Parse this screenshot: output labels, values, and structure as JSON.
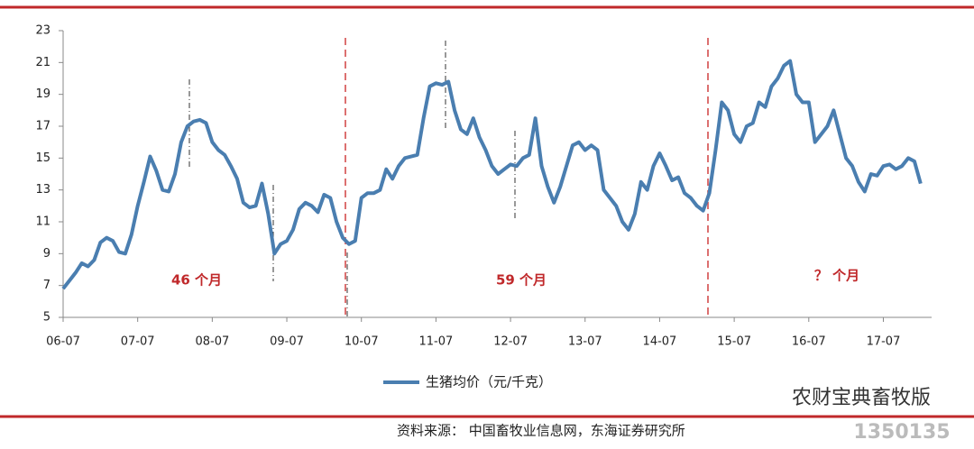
{
  "chart_data": {
    "type": "line",
    "categories": [
      "06-07",
      null,
      null,
      null,
      null,
      null,
      null,
      null,
      null,
      null,
      null,
      null,
      "07-07",
      null,
      null,
      null,
      null,
      null,
      null,
      null,
      null,
      null,
      null,
      null,
      "08-07",
      null,
      null,
      null,
      null,
      null,
      null,
      null,
      null,
      null,
      null,
      null,
      "09-07",
      null,
      null,
      null,
      null,
      null,
      null,
      null,
      null,
      null,
      null,
      null,
      "10-07",
      null,
      null,
      null,
      null,
      null,
      null,
      null,
      null,
      null,
      null,
      null,
      "11-07",
      null,
      null,
      null,
      null,
      null,
      null,
      null,
      null,
      null,
      null,
      null,
      "12-07",
      null,
      null,
      null,
      null,
      null,
      null,
      null,
      null,
      null,
      null,
      null,
      "13-07",
      null,
      null,
      null,
      null,
      null,
      null,
      null,
      null,
      null,
      null,
      null,
      "14-07",
      null,
      null,
      null,
      null,
      null,
      null,
      null,
      null,
      null,
      null,
      null,
      "15-07",
      null,
      null,
      null,
      null,
      null,
      null,
      null,
      null,
      null,
      null,
      null,
      "16-07",
      null,
      null,
      null,
      null,
      null,
      null,
      null,
      null,
      null,
      null,
      null,
      "17-07",
      null,
      null,
      null,
      null,
      null,
      null
    ],
    "series": [
      {
        "name": "生猪均价（元/千克）",
        "color": "#4a7eb0",
        "values": [
          6.8,
          7.3,
          7.8,
          8.4,
          8.2,
          8.6,
          9.7,
          10.0,
          9.8,
          9.1,
          9.0,
          10.2,
          12.0,
          13.5,
          15.1,
          14.2,
          13.0,
          12.9,
          14.0,
          16.0,
          17.0,
          17.3,
          17.4,
          17.2,
          16.0,
          15.5,
          15.2,
          14.5,
          13.7,
          12.2,
          11.9,
          12.0,
          13.4,
          11.5,
          9.0,
          9.6,
          9.8,
          10.5,
          11.8,
          12.2,
          12.0,
          11.6,
          12.7,
          12.5,
          11.0,
          10.0,
          9.6,
          9.8,
          12.5,
          12.8,
          12.8,
          13.0,
          14.3,
          13.7,
          14.5,
          15.0,
          15.1,
          15.2,
          17.5,
          19.5,
          19.7,
          19.6,
          19.8,
          18.0,
          16.8,
          16.5,
          17.5,
          16.3,
          15.5,
          14.5,
          14.0,
          14.3,
          14.6,
          14.5,
          15.0,
          15.2,
          17.5,
          14.5,
          13.2,
          12.2,
          13.2,
          14.5,
          15.8,
          16.0,
          15.5,
          15.8,
          15.5,
          13.0,
          12.5,
          12.0,
          11.0,
          10.5,
          11.5,
          13.5,
          13.0,
          14.5,
          15.3,
          14.5,
          13.6,
          13.8,
          12.8,
          12.5,
          12.0,
          11.7,
          12.8,
          15.5,
          18.5,
          18.0,
          16.5,
          16.0,
          17.0,
          17.2,
          18.5,
          18.2,
          19.5,
          20.0,
          20.8,
          21.1,
          19.0,
          18.5,
          18.5,
          16.0,
          16.5,
          17.0,
          18.0,
          16.5,
          15.0,
          14.5,
          13.5,
          12.9,
          14.0,
          13.9,
          14.5,
          14.6,
          14.3,
          14.5,
          15.0,
          14.8,
          13.4
        ]
      }
    ],
    "ylim": [
      5,
      23
    ],
    "yticks": [
      5,
      7,
      9,
      11,
      13,
      15,
      17,
      19,
      21,
      23
    ],
    "annotations": [
      "46 个月",
      "59 个月",
      "？ 个月"
    ],
    "source": "资料来源：  中国畜牧业信息网，东海证券研究所",
    "watermark": "农财宝典畜牧版",
    "watermark_number": "1350135"
  }
}
